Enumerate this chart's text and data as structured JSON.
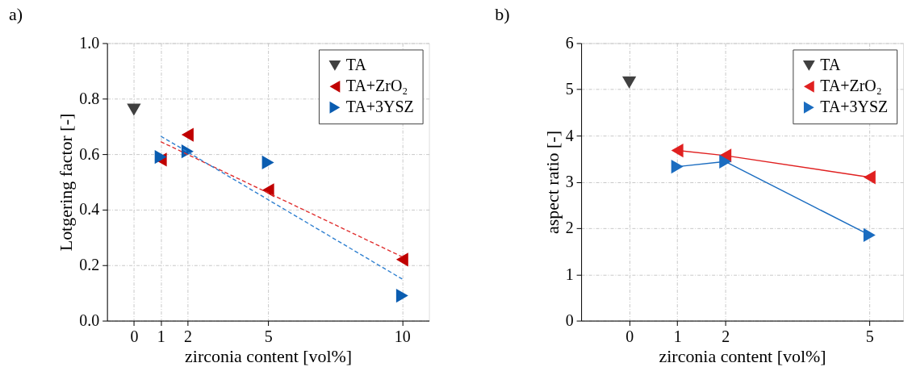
{
  "chart_data": [
    {
      "type": "scatter",
      "title": "a)",
      "xlabel": "zirconia content [vol%]",
      "ylabel": "Lotgering factor [-]",
      "xlim": [
        -1,
        11
      ],
      "xticks": [
        0,
        1,
        2,
        5,
        10
      ],
      "ylim": [
        0,
        1
      ],
      "yticks": [
        {
          "value": 0,
          "label": "0.0"
        },
        0.2,
        0.4,
        0.6,
        0.8,
        {
          "value": 1,
          "label": "1.0"
        }
      ],
      "grid": true,
      "legend": "top right",
      "marker": "triangle",
      "series": [
        {
          "name": "TA",
          "color": "#404040",
          "x": [
            0
          ],
          "values": [
            0.76
          ]
        },
        {
          "name": "TA+ZrO₂",
          "color": "#c00000",
          "x": [
            1,
            2,
            5,
            10
          ],
          "values": [
            0.58,
            0.67,
            0.47,
            0.22
          ]
        },
        {
          "name": "TA+3YSZ",
          "color": "#0a5cb0",
          "x": [
            1,
            2,
            5,
            10
          ],
          "values": [
            0.59,
            0.61,
            0.57,
            0.09
          ]
        },
        {
          "type": "line",
          "line_style": "dashed",
          "marker": "none",
          "color": "#e03030",
          "x": [
            1,
            10
          ],
          "values": [
            0.645,
            0.23
          ]
        },
        {
          "type": "line",
          "line_style": "dashed",
          "marker": "none",
          "color": "#3080d0",
          "x": [
            1,
            10
          ],
          "values": [
            0.665,
            0.15
          ]
        }
      ]
    },
    {
      "type": "line",
      "title": "b)",
      "xlabel": "zirconia content [vol%]",
      "ylabel": "aspect ratio [-]",
      "xlim": [
        -1,
        5.7
      ],
      "xticks": [
        0,
        1,
        2,
        5
      ],
      "ylim": [
        0,
        6
      ],
      "yticks": [
        0,
        1,
        2,
        3,
        4,
        5,
        6
      ],
      "grid": true,
      "legend": "top right",
      "marker": "triangle",
      "series": [
        {
          "name": "TA",
          "type": "scatter",
          "color": "#404040",
          "x": [
            0
          ],
          "values": [
            5.15
          ]
        },
        {
          "name": "TA+ZrO₂",
          "color": "#e02020",
          "x": [
            1,
            2,
            5
          ],
          "values": [
            3.68,
            3.57,
            3.1
          ]
        },
        {
          "name": "TA+3YSZ",
          "color": "#1a6cc0",
          "x": [
            1,
            2,
            5
          ],
          "values": [
            3.33,
            3.44,
            1.85
          ]
        }
      ]
    }
  ]
}
